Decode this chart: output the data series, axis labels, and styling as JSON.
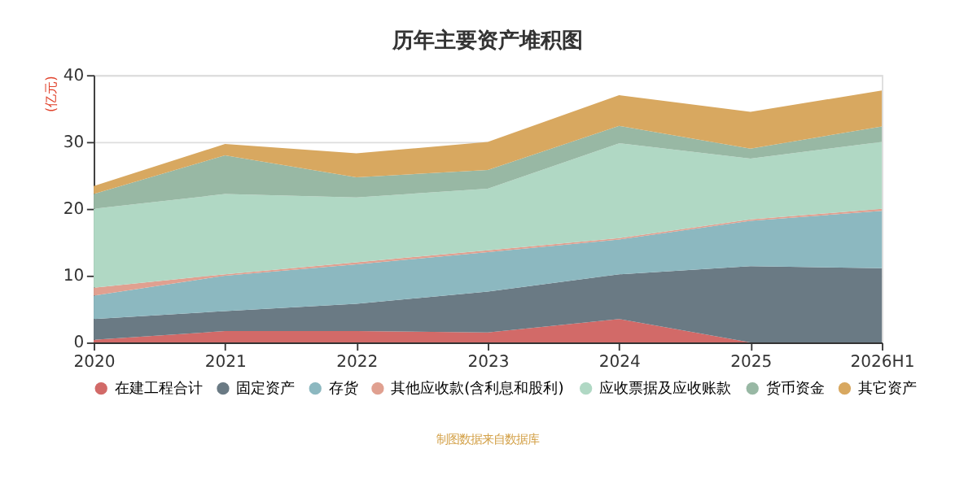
{
  "chart_data": {
    "type": "area",
    "stacked": true,
    "title": "历年主要资产堆积图",
    "ylabel": "(亿元)",
    "categories": [
      "2020",
      "2021",
      "2022",
      "2023",
      "2024",
      "2025",
      "2026H1"
    ],
    "ylim": [
      0,
      40
    ],
    "yticks": [
      0,
      10,
      20,
      30,
      40
    ],
    "grid": "y",
    "legend": "bottom",
    "annotations": [
      "制图数据来自数据库"
    ],
    "series": [
      {
        "name": "在建工程合计",
        "color": "#d26a68",
        "values": [
          0.4,
          1.7,
          1.7,
          1.5,
          3.5,
          0,
          0
        ]
      },
      {
        "name": "固定资产",
        "color": "#6a7a84",
        "values": [
          3.1,
          3.0,
          4.1,
          6.1,
          6.7,
          11.4,
          11.1
        ]
      },
      {
        "name": "存货",
        "color": "#8cb8c0",
        "values": [
          3.5,
          5.3,
          5.9,
          5.9,
          5.2,
          6.8,
          8.6
        ]
      },
      {
        "name": "其他应收款(含利息和股利)",
        "color": "#e0a090",
        "values": [
          1.2,
          0.2,
          0.3,
          0.3,
          0.2,
          0.2,
          0.3
        ]
      },
      {
        "name": "应收票据及应收账款",
        "color": "#b0d8c4",
        "values": [
          11.8,
          12.0,
          9.7,
          9.2,
          14.2,
          9.1,
          10.0
        ]
      },
      {
        "name": "货币资金",
        "color": "#98b8a4",
        "values": [
          2.2,
          5.8,
          3.0,
          2.8,
          2.6,
          1.5,
          2.3
        ]
      },
      {
        "name": "其它资产",
        "color": "#d8a860",
        "values": [
          1.2,
          1.7,
          3.6,
          4.2,
          4.6,
          5.5,
          5.4
        ]
      }
    ]
  }
}
